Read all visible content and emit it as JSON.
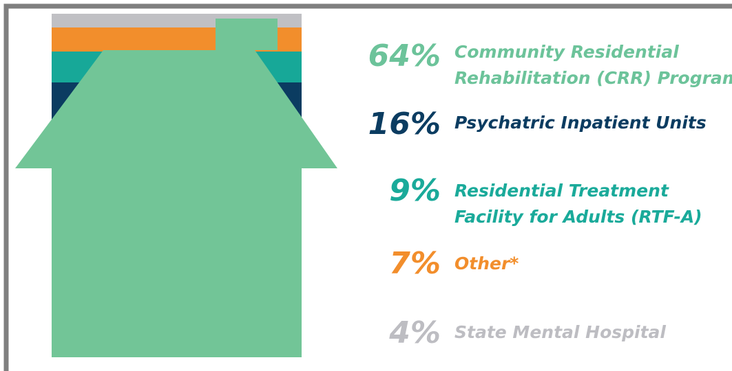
{
  "chart_data": {
    "type": "house",
    "categories": [
      [
        "Community  Residential",
        "Rehabilitation (CRR) Program"
      ],
      [
        "Psychatric Inpatient Units"
      ],
      [
        "Residential Treatment",
        "Facility for Adults (RTF-A)"
      ],
      [
        "Other*"
      ],
      [
        "State Mental Hospital"
      ]
    ],
    "values": [
      64,
      16,
      9,
      7,
      4
    ],
    "value_labels": [
      "64%",
      "16%",
      "9%",
      "7%",
      "4%"
    ],
    "colors": [
      "#72c597",
      "#0b3c61",
      "#17a898",
      "#f28e2c",
      "#c0c0c4"
    ],
    "label_colors": [
      "#6cc39a",
      "#0b3c61",
      "#1aaa9a",
      "#f28e2c",
      "#bdbdc2"
    ]
  }
}
